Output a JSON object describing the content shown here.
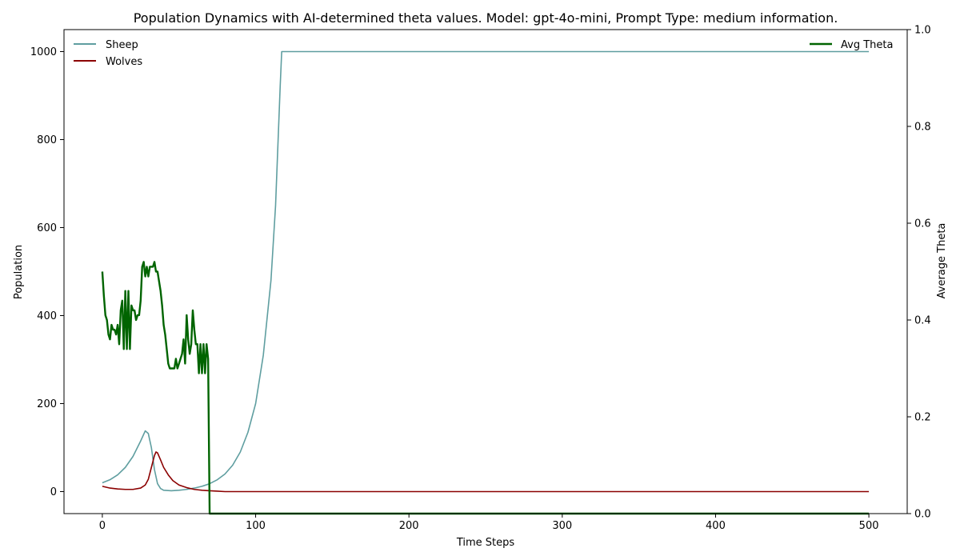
{
  "chart_data": {
    "type": "line",
    "title": "Population Dynamics with AI-determined theta values. Model: gpt-4o-mini, Prompt Type: medium information.",
    "xlabel": "Time Steps",
    "ylabel": "Population",
    "y2label": "Average Theta",
    "xlim": [
      -25,
      525
    ],
    "ylim": [
      -50,
      1050
    ],
    "y2lim": [
      0,
      1.0
    ],
    "xticks": [
      "0",
      "100",
      "200",
      "300",
      "400",
      "500"
    ],
    "yticks": [
      "0",
      "200",
      "400",
      "600",
      "800",
      "1000"
    ],
    "y2ticks": [
      "0.0",
      "0.2",
      "0.4",
      "0.6",
      "0.8",
      "1.0"
    ],
    "grid": false,
    "legend_left_placement": "top-left",
    "legend_right_placement": "top-right",
    "series": [
      {
        "name": "Sheep",
        "axis": "left",
        "color": "#5f9ea0",
        "x": [
          0,
          5,
          10,
          15,
          20,
          25,
          28,
          30,
          32,
          34,
          36,
          38,
          40,
          45,
          50,
          55,
          60,
          65,
          70,
          75,
          80,
          85,
          90,
          95,
          100,
          105,
          110,
          113,
          116,
          117,
          120,
          200,
          300,
          400,
          500
        ],
        "y": [
          20,
          27,
          38,
          55,
          80,
          115,
          138,
          132,
          100,
          50,
          18,
          7,
          3,
          2,
          3,
          5,
          8,
          12,
          18,
          27,
          40,
          60,
          90,
          135,
          200,
          310,
          480,
          650,
          920,
          1000,
          1000,
          1000,
          1000,
          1000,
          1000
        ]
      },
      {
        "name": "Wolves",
        "axis": "left",
        "color": "#8b0000",
        "x": [
          0,
          5,
          10,
          15,
          20,
          25,
          28,
          30,
          32,
          34,
          35,
          36,
          38,
          40,
          43,
          46,
          50,
          55,
          60,
          65,
          70,
          75,
          80,
          100,
          200,
          300,
          400,
          500
        ],
        "y": [
          12,
          8,
          6,
          5,
          5,
          8,
          15,
          28,
          55,
          82,
          90,
          88,
          72,
          55,
          38,
          25,
          15,
          9,
          5,
          3,
          2,
          1,
          0,
          0,
          0,
          0,
          0,
          0
        ]
      },
      {
        "name": "Avg Theta",
        "axis": "right",
        "color": "#006400",
        "x": [
          0,
          1,
          2,
          3,
          4,
          5,
          6,
          7,
          8,
          9,
          10,
          11,
          12,
          13,
          14,
          15,
          16,
          17,
          18,
          19,
          20,
          21,
          22,
          23,
          24,
          25,
          26,
          27,
          28,
          29,
          30,
          31,
          32,
          33,
          34,
          35,
          36,
          37,
          38,
          39,
          40,
          41,
          42,
          43,
          44,
          45,
          46,
          47,
          48,
          49,
          50,
          51,
          52,
          53,
          54,
          55,
          56,
          57,
          58,
          59,
          60,
          61,
          62,
          63,
          64,
          65,
          66,
          67,
          68,
          69,
          70,
          71,
          72,
          73,
          74,
          75,
          500
        ],
        "y": [
          0.5,
          0.45,
          0.41,
          0.4,
          0.37,
          0.36,
          0.39,
          0.38,
          0.38,
          0.37,
          0.39,
          0.35,
          0.42,
          0.44,
          0.34,
          0.46,
          0.34,
          0.46,
          0.34,
          0.43,
          0.42,
          0.42,
          0.4,
          0.41,
          0.41,
          0.44,
          0.51,
          0.52,
          0.49,
          0.51,
          0.49,
          0.51,
          0.51,
          0.51,
          0.52,
          0.5,
          0.5,
          0.48,
          0.46,
          0.43,
          0.39,
          0.37,
          0.34,
          0.31,
          0.3,
          0.3,
          0.3,
          0.3,
          0.32,
          0.3,
          0.31,
          0.32,
          0.33,
          0.36,
          0.31,
          0.41,
          0.36,
          0.33,
          0.35,
          0.42,
          0.38,
          0.35,
          0.35,
          0.29,
          0.35,
          0.29,
          0.35,
          0.29,
          0.35,
          0.32,
          0.0,
          0.0,
          0.0,
          0.0,
          0.0,
          0.0,
          0.0
        ]
      }
    ]
  }
}
